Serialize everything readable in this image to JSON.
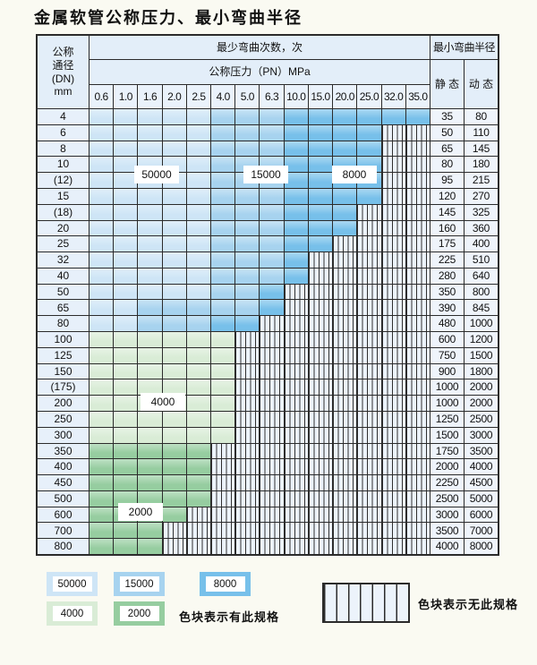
{
  "title": "金属软管公称压力、最小弯曲半径",
  "table": {
    "header": {
      "dn_lines": [
        "公称",
        "通径",
        "(DN)",
        "mm"
      ],
      "bend_cycles_label": "最少弯曲次数，次",
      "pressure_label": "公称压力（PN）MPa",
      "radius_label": "最小弯曲半径",
      "static_label": "静 态",
      "dynamic_label": "动 态"
    },
    "pressures": [
      "0.6",
      "1.0",
      "1.6",
      "2.0",
      "2.5",
      "4.0",
      "5.0",
      "6.3",
      "10.0",
      "15.0",
      "20.0",
      "25.0",
      "32.0",
      "35.0"
    ],
    "cell_legend": "L=50000-cycle blue, M=15000-cycle blue, D=8000-cycle blue, g=4000-cycle green, G=2000-cycle green, h=hatched no-spec",
    "rows": [
      {
        "dn": "4",
        "cells": "LLLLLMMMDDDDDD",
        "static": "35",
        "dynamic": "80"
      },
      {
        "dn": "6",
        "cells": "LLLLLMMMDDDDhh",
        "static": "50",
        "dynamic": "110"
      },
      {
        "dn": "8",
        "cells": "LLLLLMMMDDDDhh",
        "static": "65",
        "dynamic": "145"
      },
      {
        "dn": "10",
        "cells": "LLLLLMMMDDDDhh",
        "static": "80",
        "dynamic": "180"
      },
      {
        "dn": "(12)",
        "cells": "LLLLLMMMDDDDhh",
        "static": "95",
        "dynamic": "215"
      },
      {
        "dn": "15",
        "cells": "LLLLLMMMDDDDhh",
        "static": "120",
        "dynamic": "270"
      },
      {
        "dn": "(18)",
        "cells": "LLLLLMMMDDDhhh",
        "static": "145",
        "dynamic": "325"
      },
      {
        "dn": "20",
        "cells": "LLLLLMMMDDDhhh",
        "static": "160",
        "dynamic": "360"
      },
      {
        "dn": "25",
        "cells": "LLLLLMMMDDhhhh",
        "static": "175",
        "dynamic": "400"
      },
      {
        "dn": "32",
        "cells": "LLLLLMMMDhhhhh",
        "static": "225",
        "dynamic": "510"
      },
      {
        "dn": "40",
        "cells": "LLLLLMMMDhhhhh",
        "static": "280",
        "dynamic": "640"
      },
      {
        "dn": "50",
        "cells": "LLLLLMMDhhhhhh",
        "static": "350",
        "dynamic": "800"
      },
      {
        "dn": "65",
        "cells": "LLMMMMMDhhhhhh",
        "static": "390",
        "dynamic": "845"
      },
      {
        "dn": "80",
        "cells": "LLMMMDDhhhhhhh",
        "static": "480",
        "dynamic": "1000"
      },
      {
        "dn": "100",
        "cells": "gggggghhhhhhhh",
        "static": "600",
        "dynamic": "1200"
      },
      {
        "dn": "125",
        "cells": "gggggghhhhhhhh",
        "static": "750",
        "dynamic": "1500"
      },
      {
        "dn": "150",
        "cells": "gggggghhhhhhhh",
        "static": "900",
        "dynamic": "1800"
      },
      {
        "dn": "(175)",
        "cells": "gggggghhhhhhhh",
        "static": "1000",
        "dynamic": "2000"
      },
      {
        "dn": "200",
        "cells": "gggggghhhhhhhh",
        "static": "1000",
        "dynamic": "2000"
      },
      {
        "dn": "250",
        "cells": "gggggghhhhhhhh",
        "static": "1250",
        "dynamic": "2500"
      },
      {
        "dn": "300",
        "cells": "gggggghhhhhhhh",
        "static": "1500",
        "dynamic": "3000"
      },
      {
        "dn": "350",
        "cells": "GGGGGhhhhhhhhh",
        "static": "1750",
        "dynamic": "3500"
      },
      {
        "dn": "400",
        "cells": "GGGGGhhhhhhhhh",
        "static": "2000",
        "dynamic": "4000"
      },
      {
        "dn": "450",
        "cells": "GGGGGhhhhhhhhh",
        "static": "2250",
        "dynamic": "4500"
      },
      {
        "dn": "500",
        "cells": "GGGGGhhhhhhhhh",
        "static": "2500",
        "dynamic": "5000"
      },
      {
        "dn": "600",
        "cells": "GGGGhhhhhhhhhh",
        "static": "3000",
        "dynamic": "6000"
      },
      {
        "dn": "700",
        "cells": "GGGhhhhhhhhhhh",
        "static": "3500",
        "dynamic": "7000"
      },
      {
        "dn": "800",
        "cells": "GGGhhhhhhhhhhh",
        "static": "4000",
        "dynamic": "8000"
      }
    ],
    "zone_labels": [
      {
        "text": "50000"
      },
      {
        "text": "15000"
      },
      {
        "text": "8000"
      },
      {
        "text": "4000"
      },
      {
        "text": "2000"
      }
    ]
  },
  "legend": {
    "swatches": [
      {
        "label": "50000",
        "color_key": "light_blue"
      },
      {
        "label": "15000",
        "color_key": "medium_blue"
      },
      {
        "label": "8000",
        "color_key": "dark_blue"
      },
      {
        "label": "4000",
        "color_key": "light_green"
      },
      {
        "label": "2000",
        "color_key": "medium_green"
      }
    ],
    "has_spec_text": "色块表示有此规格",
    "no_spec_text": "色块表示无此规格"
  },
  "colors": {
    "light_blue": "#cee5f6",
    "medium_blue": "#a7d3ef",
    "dark_blue": "#77c0ea",
    "light_green": "#d9ecd6",
    "medium_green": "#96cda0",
    "hatch_bg": "#ecf3fb",
    "grid_line": "#2b2b2b"
  }
}
